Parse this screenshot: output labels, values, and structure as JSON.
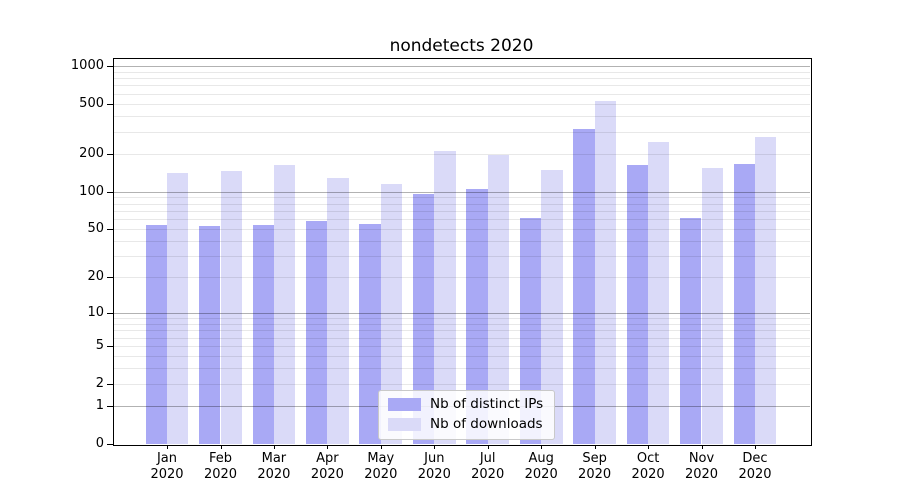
{
  "figure": {
    "title": "nondetects 2020",
    "background": "#ffffff"
  },
  "chart_data": {
    "type": "bar",
    "title": "nondetects 2020",
    "categories": [
      "Jan 2020",
      "Feb 2020",
      "Mar 2020",
      "Apr 2020",
      "May 2020",
      "Jun 2020",
      "Jul 2020",
      "Aug 2020",
      "Sep 2020",
      "Oct 2020",
      "Nov 2020",
      "Dec 2020"
    ],
    "series": [
      {
        "name": "Nb of distinct IPs",
        "color": "#a9a9f5",
        "values": [
          54,
          53,
          54,
          58,
          55,
          95,
          105,
          61,
          313,
          163,
          61,
          166
        ]
      },
      {
        "name": "Nb of downloads",
        "color": "#dadaf8",
        "values": [
          141,
          146,
          162,
          129,
          115,
          210,
          196,
          149,
          529,
          250,
          153,
          272
        ]
      }
    ],
    "xlabel": "",
    "ylabel": "",
    "y_axis": {
      "scale": "log1p",
      "tick_values": [
        0,
        1,
        2,
        5,
        10,
        20,
        50,
        100,
        200,
        500,
        1000
      ],
      "top_value": 1160,
      "major_gridlines": [
        1,
        10,
        100,
        1000
      ],
      "minor_gridlines": [
        2,
        3,
        4,
        5,
        6,
        7,
        8,
        9,
        20,
        30,
        40,
        50,
        60,
        70,
        80,
        90,
        200,
        300,
        400,
        500,
        600,
        700,
        800,
        900
      ]
    },
    "grid": "both, drawn over bars",
    "legend": {
      "position": "lower-center"
    },
    "colors": {
      "grid_major": "rgba(0,0,0,0.30)",
      "grid_minor": "rgba(0,0,0,0.09)",
      "frame": "#000000",
      "text": "#000000"
    }
  }
}
